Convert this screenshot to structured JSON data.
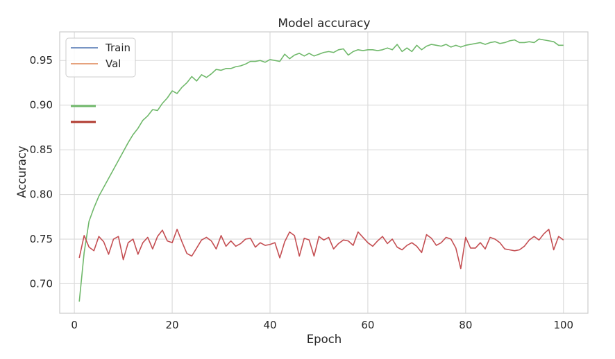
{
  "chart_data": {
    "type": "line",
    "title": "Model accuracy",
    "xlabel": "Epoch",
    "ylabel": "Accuracy",
    "xlim": [
      -3,
      105
    ],
    "ylim": [
      0.667,
      0.982
    ],
    "xticks": [
      0,
      20,
      40,
      60,
      80,
      100
    ],
    "yticks": [
      0.7,
      0.75,
      0.8,
      0.85,
      0.9,
      0.95
    ],
    "xtick_labels": [
      "0",
      "20",
      "40",
      "60",
      "80",
      "100"
    ],
    "ytick_labels": [
      "0.70",
      "0.75",
      "0.80",
      "0.85",
      "0.90",
      "0.95"
    ],
    "grid": true,
    "legend_position": "top-left",
    "legend": [
      {
        "label": "Train",
        "color": "#4c72b0"
      },
      {
        "label": "Val",
        "color": "#dd8452"
      }
    ],
    "x": [
      1,
      2,
      3,
      4,
      5,
      6,
      7,
      8,
      9,
      10,
      11,
      12,
      13,
      14,
      15,
      16,
      17,
      18,
      19,
      20,
      21,
      22,
      23,
      24,
      25,
      26,
      27,
      28,
      29,
      30,
      31,
      32,
      33,
      34,
      35,
      36,
      37,
      38,
      39,
      40,
      41,
      42,
      43,
      44,
      45,
      46,
      47,
      48,
      49,
      50,
      51,
      52,
      53,
      54,
      55,
      56,
      57,
      58,
      59,
      60,
      61,
      62,
      63,
      64,
      65,
      66,
      67,
      68,
      69,
      70,
      71,
      72,
      73,
      74,
      75,
      76,
      77,
      78,
      79,
      80,
      81,
      82,
      83,
      84,
      85,
      86,
      87,
      88,
      89,
      90,
      91,
      92,
      93,
      94,
      95,
      96,
      97,
      98,
      99,
      100
    ],
    "series": [
      {
        "color": "#6fb86a",
        "values": [
          0.68,
          0.735,
          0.77,
          0.785,
          0.798,
          0.808,
          0.818,
          0.828,
          0.838,
          0.848,
          0.858,
          0.867,
          0.874,
          0.883,
          0.888,
          0.895,
          0.894,
          0.902,
          0.908,
          0.916,
          0.913,
          0.92,
          0.925,
          0.932,
          0.927,
          0.934,
          0.931,
          0.935,
          0.94,
          0.939,
          0.941,
          0.941,
          0.943,
          0.944,
          0.946,
          0.949,
          0.949,
          0.95,
          0.948,
          0.951,
          0.95,
          0.949,
          0.957,
          0.952,
          0.956,
          0.958,
          0.955,
          0.958,
          0.955,
          0.957,
          0.959,
          0.96,
          0.959,
          0.962,
          0.963,
          0.956,
          0.96,
          0.962,
          0.961,
          0.962,
          0.962,
          0.961,
          0.962,
          0.964,
          0.962,
          0.968,
          0.96,
          0.964,
          0.96,
          0.967,
          0.962,
          0.966,
          0.968,
          0.967,
          0.966,
          0.968,
          0.965,
          0.967,
          0.965,
          0.967,
          0.968,
          0.969,
          0.97,
          0.968,
          0.97,
          0.971,
          0.969,
          0.97,
          0.972,
          0.973,
          0.97,
          0.97,
          0.971,
          0.97,
          0.974,
          0.973,
          0.972,
          0.971,
          0.967,
          0.967
        ]
      },
      {
        "color": "#c44e52",
        "values": [
          0.729,
          0.754,
          0.741,
          0.737,
          0.753,
          0.747,
          0.733,
          0.75,
          0.753,
          0.727,
          0.746,
          0.75,
          0.733,
          0.746,
          0.752,
          0.739,
          0.753,
          0.76,
          0.748,
          0.746,
          0.761,
          0.747,
          0.734,
          0.731,
          0.74,
          0.749,
          0.752,
          0.748,
          0.739,
          0.754,
          0.742,
          0.748,
          0.742,
          0.745,
          0.75,
          0.751,
          0.741,
          0.746,
          0.743,
          0.744,
          0.746,
          0.729,
          0.747,
          0.758,
          0.754,
          0.731,
          0.751,
          0.749,
          0.731,
          0.753,
          0.749,
          0.752,
          0.739,
          0.745,
          0.749,
          0.748,
          0.743,
          0.758,
          0.752,
          0.746,
          0.742,
          0.748,
          0.753,
          0.745,
          0.75,
          0.741,
          0.738,
          0.743,
          0.746,
          0.742,
          0.735,
          0.755,
          0.751,
          0.743,
          0.746,
          0.752,
          0.75,
          0.74,
          0.717,
          0.752,
          0.74,
          0.74,
          0.746,
          0.739,
          0.752,
          0.75,
          0.746,
          0.739,
          0.738,
          0.737,
          0.738,
          0.742,
          0.749,
          0.753,
          0.749,
          0.756,
          0.761,
          0.738,
          0.753,
          0.749
        ]
      }
    ]
  },
  "extra_legend_colors": [
    "#6fb86a",
    "#b03a2e"
  ]
}
